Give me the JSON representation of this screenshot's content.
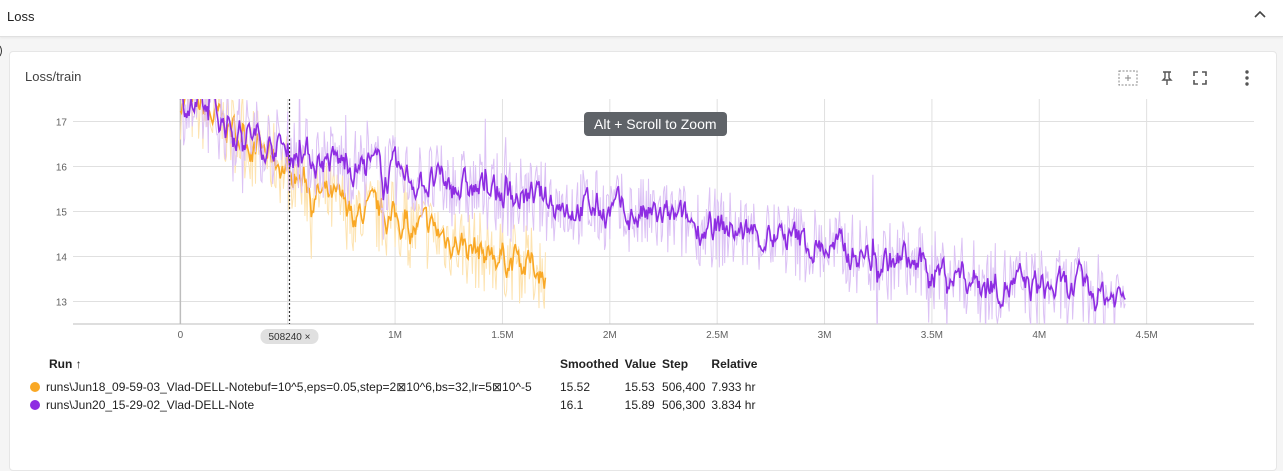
{
  "section": {
    "title": "Loss"
  },
  "card": {
    "title": "Loss/train"
  },
  "tooltip": "Alt + Scroll to Zoom",
  "cursor_label": "508240 ×",
  "legend": {
    "headers": {
      "run": "Run ↑",
      "smoothed": "Smoothed",
      "value": "Value",
      "step": "Step",
      "relative": "Relative"
    },
    "rows": [
      {
        "name": "runs\\Jun18_09-59-03_Vlad-DELL-Notebuf=10^5,eps=0.05,step=2⊠10^6,bs=32,lr=5⊠10^-5",
        "smoothed": "15.52",
        "value": "15.53",
        "step": "506,400",
        "relative": "7.933 hr",
        "color": "#f9a825"
      },
      {
        "name": "runs\\Jun20_15-29-02_Vlad-DELL-Note",
        "smoothed": "16.1",
        "value": "15.89",
        "step": "506,300",
        "relative": "3.834 hr",
        "color": "#8e2de2"
      }
    ]
  },
  "chart_data": {
    "type": "line",
    "xlim": [
      -500000,
      5000000
    ],
    "ylim": [
      12.5,
      17.5
    ],
    "x_ticks": [
      0,
      500000,
      1000000,
      1500000,
      2000000,
      2500000,
      3000000,
      3500000,
      4000000,
      4500000
    ],
    "x_tick_labels": [
      "0",
      "",
      "1M",
      "1.5M",
      "2M",
      "2.5M",
      "3M",
      "3.5M",
      "4M",
      "4.5M"
    ],
    "y_ticks": [
      13,
      14,
      15,
      16,
      17
    ],
    "y_tick_labels": [
      "13",
      "14",
      "15",
      "16",
      "17"
    ],
    "cursor_step": 508240,
    "grid": true,
    "series": [
      {
        "color": "#f9a825",
        "x": [
          0,
          100000,
          200000,
          300000,
          400000,
          500000,
          600000,
          700000,
          800000,
          900000,
          1000000,
          1100000,
          1200000,
          1300000,
          1400000,
          1500000,
          1600000,
          1700000
        ],
        "y": [
          17.5,
          17.2,
          16.9,
          16.6,
          16.3,
          15.9,
          15.5,
          15.2,
          15.0,
          14.9,
          14.8,
          14.6,
          14.5,
          14.3,
          14.1,
          14.0,
          13.8,
          13.7
        ]
      },
      {
        "color": "#8e2de2",
        "x": [
          0,
          200000,
          400000,
          600000,
          800000,
          1000000,
          1200000,
          1400000,
          1600000,
          1800000,
          2000000,
          2200000,
          2400000,
          2600000,
          2800000,
          3000000,
          3200000,
          3400000,
          3600000,
          3800000,
          4000000,
          4200000,
          4400000
        ],
        "y": [
          17.4,
          17.0,
          16.5,
          16.2,
          16.0,
          15.8,
          15.6,
          15.45,
          15.3,
          15.15,
          15.0,
          14.85,
          14.7,
          14.55,
          14.4,
          14.2,
          14.0,
          13.8,
          13.6,
          13.4,
          13.3,
          13.2,
          13.1
        ]
      }
    ]
  }
}
